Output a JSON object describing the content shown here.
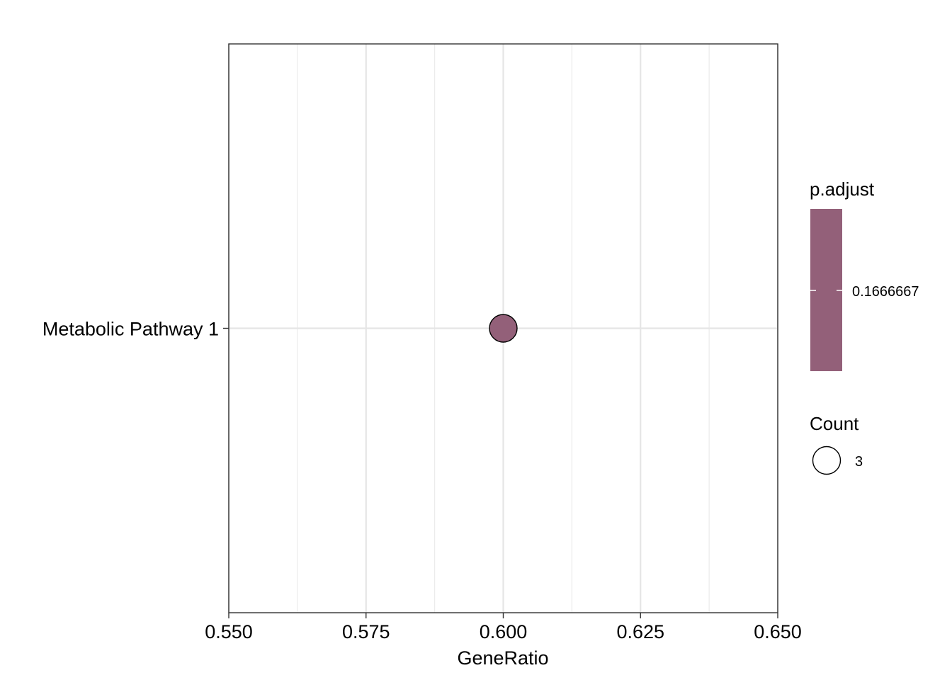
{
  "chart_data": {
    "type": "scatter",
    "title": "",
    "xlabel": "GeneRatio",
    "ylabel": "",
    "xlim": [
      0.55,
      0.65
    ],
    "x_ticks": [
      0.55,
      0.575,
      0.6,
      0.625,
      0.65
    ],
    "x_tick_labels": [
      "0.550",
      "0.575",
      "0.600",
      "0.625",
      "0.650"
    ],
    "categories": [
      "Metabolic Pathway 1"
    ],
    "grid": true,
    "points": [
      {
        "category": "Metabolic Pathway 1",
        "x": 0.6,
        "count": 3,
        "p_adjust": 0.1666667,
        "color": "#936079"
      }
    ],
    "legend_placement": "right",
    "color_legend": {
      "title": "p.adjust",
      "labels": [
        "0.1666667"
      ],
      "color": "#936079"
    },
    "size_legend": {
      "title": "Count",
      "labels": [
        "3"
      ]
    }
  }
}
